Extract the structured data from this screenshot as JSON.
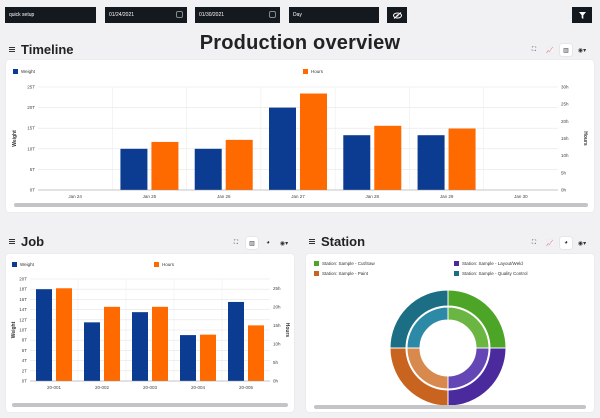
{
  "toolbar": {
    "preset": "quick setup",
    "date_from": "01/24/2021",
    "date_to": "01/30/2021",
    "granularity": "Day",
    "hide_icon": "eye-slash-icon",
    "filter_icon": "filter-icon"
  },
  "page_title": "Production overview",
  "timeline": {
    "title": "Timeline",
    "tools": [
      "expand-icon",
      "line-chart-icon",
      "bar-chart-icon",
      "globe-icon"
    ]
  },
  "job": {
    "title": "Job",
    "tools": [
      "expand-icon",
      "bar-chart-icon",
      "pie-chart-icon",
      "globe-icon"
    ]
  },
  "station": {
    "title": "Station",
    "tools": [
      "expand-icon",
      "line-chart-icon",
      "pie-chart-icon",
      "globe-icon"
    ]
  },
  "colors": {
    "weight": "#0b3c91",
    "hours": "#ff6a00",
    "green": "#4da528",
    "purple": "#4b2a9e",
    "brown": "#c86420",
    "teal": "#1b6e84"
  },
  "chart_data": [
    {
      "type": "bar",
      "title": "",
      "categories": [
        "Jan 24",
        "Jan 25",
        "Jan 26",
        "Jan 27",
        "Jan 28",
        "Jan 29",
        "Jan 30"
      ],
      "series": [
        {
          "name": "Weight",
          "values": [
            0,
            10,
            10,
            20,
            13.3,
            13.3,
            0
          ],
          "axis": "left"
        },
        {
          "name": "Hours",
          "values": [
            0,
            14,
            14.6,
            28.1,
            18.7,
            17.9,
            0
          ],
          "axis": "right"
        }
      ],
      "ylabel": "Weight",
      "y2label": "Hours",
      "yticks": [
        "0T",
        "5T",
        "10T",
        "15T",
        "20T",
        "25T"
      ],
      "y2ticks": [
        "0h",
        "5h",
        "10h",
        "15h",
        "20h",
        "25h",
        "30h"
      ],
      "ylim": [
        0,
        25
      ],
      "y2lim": [
        0,
        30
      ],
      "grid": true,
      "legend": "top"
    },
    {
      "type": "bar",
      "title": "",
      "categories": [
        "20-001",
        "20-002",
        "20-003",
        "20-004",
        "20-005"
      ],
      "series": [
        {
          "name": "Weight",
          "values": [
            18,
            11.5,
            13.5,
            9,
            15.5
          ],
          "axis": "left"
        },
        {
          "name": "Hours",
          "values": [
            25,
            20,
            20,
            12.5,
            15
          ],
          "axis": "right"
        }
      ],
      "ylabel": "Weight",
      "y2label": "Hours",
      "yticks": [
        "0T",
        "2T",
        "4T",
        "6T",
        "8T",
        "10T",
        "12T",
        "14T",
        "16T",
        "18T",
        "20T"
      ],
      "y2ticks": [
        "0h",
        "5h",
        "10h",
        "15h",
        "20h",
        "25h"
      ],
      "ylim": [
        0,
        20
      ],
      "y2lim": [
        0,
        27.5
      ],
      "grid": true,
      "legend": "top"
    },
    {
      "type": "pie",
      "title": "",
      "legend_entries": [
        "Station: Sample - Cut/Saw",
        "Station: Sample - Layout/Weld",
        "Station: Sample - Paint",
        "Station: Sample - Quality Control"
      ],
      "rings": [
        {
          "name": "outer",
          "values": [
            25,
            25,
            25,
            25
          ]
        },
        {
          "name": "inner",
          "values": [
            25,
            25,
            25,
            25
          ]
        }
      ],
      "legend": "top"
    }
  ]
}
